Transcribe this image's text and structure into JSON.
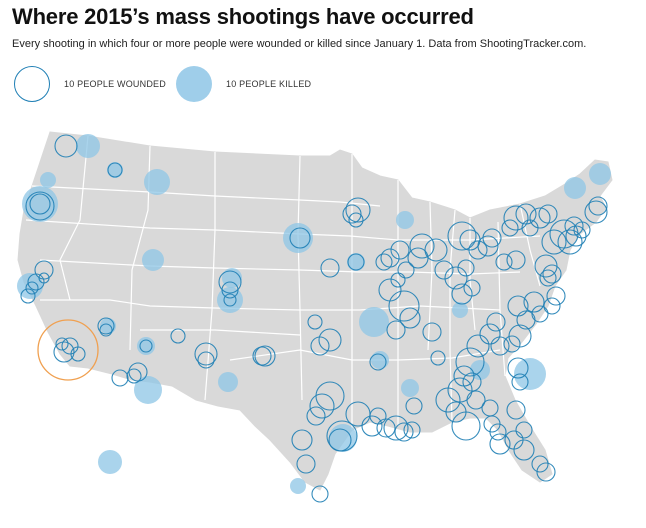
{
  "header": {
    "title": "Where 2015’s mass shootings have occurred",
    "subtitle": "Every shooting in which four or more people were wounded or killed since January 1. Data from ShootingTracker.com."
  },
  "legend": {
    "wounded_label": "10 PEOPLE WOUNDED",
    "killed_label": "10 PEOPLE KILLED"
  },
  "colors": {
    "land": "#d9d9d9",
    "state_borders": "#ffffff",
    "wounded_ring": "#1f7fb5",
    "killed_fill": "#8ec5e6",
    "highlight_ring": "#f0a050"
  }
}
